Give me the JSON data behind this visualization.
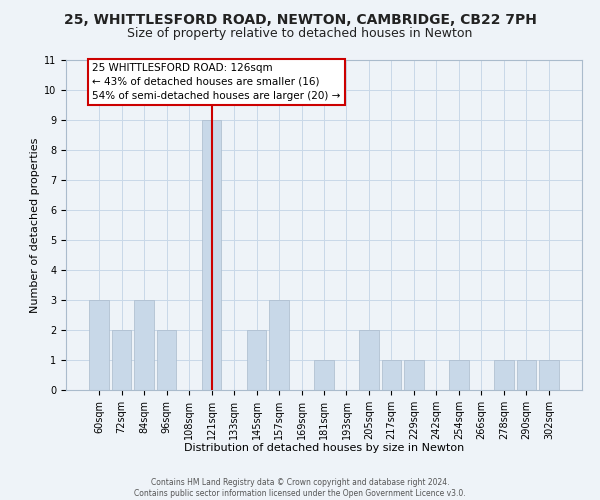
{
  "title": "25, WHITTLESFORD ROAD, NEWTON, CAMBRIDGE, CB22 7PH",
  "subtitle": "Size of property relative to detached houses in Newton",
  "xlabel": "Distribution of detached houses by size in Newton",
  "ylabel": "Number of detached properties",
  "bar_labels": [
    "60sqm",
    "72sqm",
    "84sqm",
    "96sqm",
    "108sqm",
    "121sqm",
    "133sqm",
    "145sqm",
    "157sqm",
    "169sqm",
    "181sqm",
    "193sqm",
    "205sqm",
    "217sqm",
    "229sqm",
    "242sqm",
    "254sqm",
    "266sqm",
    "278sqm",
    "290sqm",
    "302sqm"
  ],
  "bar_values": [
    3,
    2,
    3,
    2,
    0,
    9,
    0,
    2,
    3,
    0,
    1,
    0,
    2,
    1,
    1,
    0,
    1,
    0,
    1,
    1,
    1
  ],
  "bar_color": "#c8d8e8",
  "bar_edge_color": "#aabbcc",
  "subject_bar_index": 5,
  "subject_line_color": "#cc0000",
  "annotation_text": "25 WHITTLESFORD ROAD: 126sqm\n← 43% of detached houses are smaller (16)\n54% of semi-detached houses are larger (20) →",
  "annotation_box_facecolor": "#ffffff",
  "annotation_box_edgecolor": "#cc0000",
  "ylim": [
    0,
    11
  ],
  "yticks": [
    0,
    1,
    2,
    3,
    4,
    5,
    6,
    7,
    8,
    9,
    10,
    11
  ],
  "grid_color": "#c8d8e8",
  "background_color": "#eef3f8",
  "plot_bg_color": "#eef3f8",
  "footer_line1": "Contains HM Land Registry data © Crown copyright and database right 2024.",
  "footer_line2": "Contains public sector information licensed under the Open Government Licence v3.0.",
  "title_fontsize": 10,
  "subtitle_fontsize": 9,
  "xlabel_fontsize": 8,
  "ylabel_fontsize": 8,
  "tick_fontsize": 7,
  "annotation_fontsize": 7.5,
  "footer_fontsize": 5.5
}
